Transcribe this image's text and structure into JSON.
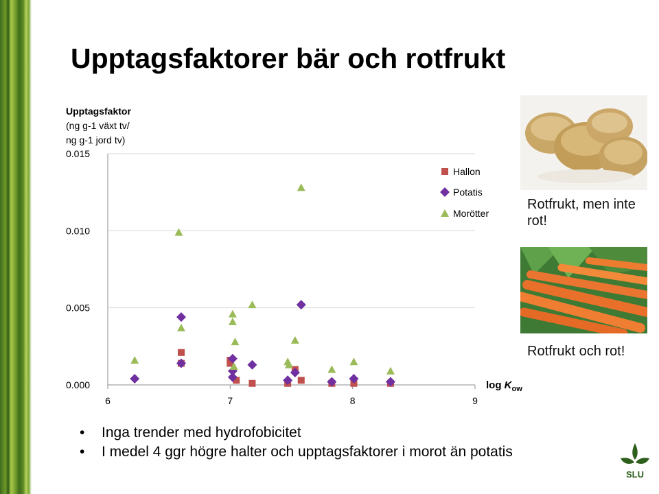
{
  "slide": {
    "title": "Upptagsfaktorer bär och rotfrukt",
    "caption_potato": "Rotfrukt, men inte rot!",
    "caption_carrot": "Rotfrukt och rot!",
    "bullets": [
      "Inga trender med hydrofobicitet",
      "I medel 4 ggr högre halter och upptagsfaktorer i morot än potatis"
    ],
    "logo_text": "SLU",
    "colors": {
      "hallon": "#c0504d",
      "potatis": "#7030a0",
      "morotter": "#9bbb59"
    }
  },
  "chart_data": {
    "type": "scatter",
    "ylabel_lines": [
      "Upptagsfaktor",
      "(ng g-1 växt tv/",
      "ng g-1 jord tv)"
    ],
    "xlabel": "log Kow",
    "xlim": [
      6,
      9
    ],
    "ylim": [
      0,
      0.015
    ],
    "xticks": [
      "6",
      "7",
      "8",
      "9"
    ],
    "yticks": [
      "0.000",
      "0.005",
      "0.010",
      "0.015"
    ],
    "grid": "horizontal",
    "legend_position": "top-right",
    "series": [
      {
        "name": "Hallon",
        "marker": "square",
        "color": "#c0504d",
        "points": [
          [
            6.6,
            0.0021
          ],
          [
            6.6,
            0.0014
          ],
          [
            7.0,
            0.0016
          ],
          [
            7.0,
            0.0014
          ],
          [
            7.05,
            0.0003
          ],
          [
            7.18,
            0.0001
          ],
          [
            7.47,
            0.0001
          ],
          [
            7.53,
            0.001
          ],
          [
            7.58,
            0.0003
          ],
          [
            7.83,
            0.0001
          ],
          [
            8.01,
            0.0001
          ],
          [
            8.31,
            0.0001
          ]
        ]
      },
      {
        "name": "Potatis",
        "marker": "diamond",
        "color": "#7030a0",
        "points": [
          [
            6.22,
            0.0004
          ],
          [
            6.6,
            0.0044
          ],
          [
            6.6,
            0.0014
          ],
          [
            7.02,
            0.0017
          ],
          [
            7.02,
            0.0009
          ],
          [
            7.02,
            0.0005
          ],
          [
            7.18,
            0.0013
          ],
          [
            7.47,
            0.0003
          ],
          [
            7.53,
            0.0008
          ],
          [
            7.58,
            0.0052
          ],
          [
            7.83,
            0.0002
          ],
          [
            8.01,
            0.0004
          ],
          [
            8.31,
            0.0002
          ]
        ]
      },
      {
        "name": "Morötter",
        "marker": "triangle",
        "color": "#9bbb59",
        "points": [
          [
            6.22,
            0.0016
          ],
          [
            6.58,
            0.0099
          ],
          [
            6.6,
            0.0037
          ],
          [
            7.02,
            0.0046
          ],
          [
            7.02,
            0.0041
          ],
          [
            7.03,
            0.0012
          ],
          [
            7.04,
            0.0028
          ],
          [
            7.18,
            0.0052
          ],
          [
            7.47,
            0.0015
          ],
          [
            7.48,
            0.0013
          ],
          [
            7.53,
            0.0029
          ],
          [
            7.58,
            0.0128
          ],
          [
            7.83,
            0.001
          ],
          [
            8.01,
            0.0015
          ],
          [
            8.31,
            0.0009
          ]
        ]
      }
    ]
  }
}
